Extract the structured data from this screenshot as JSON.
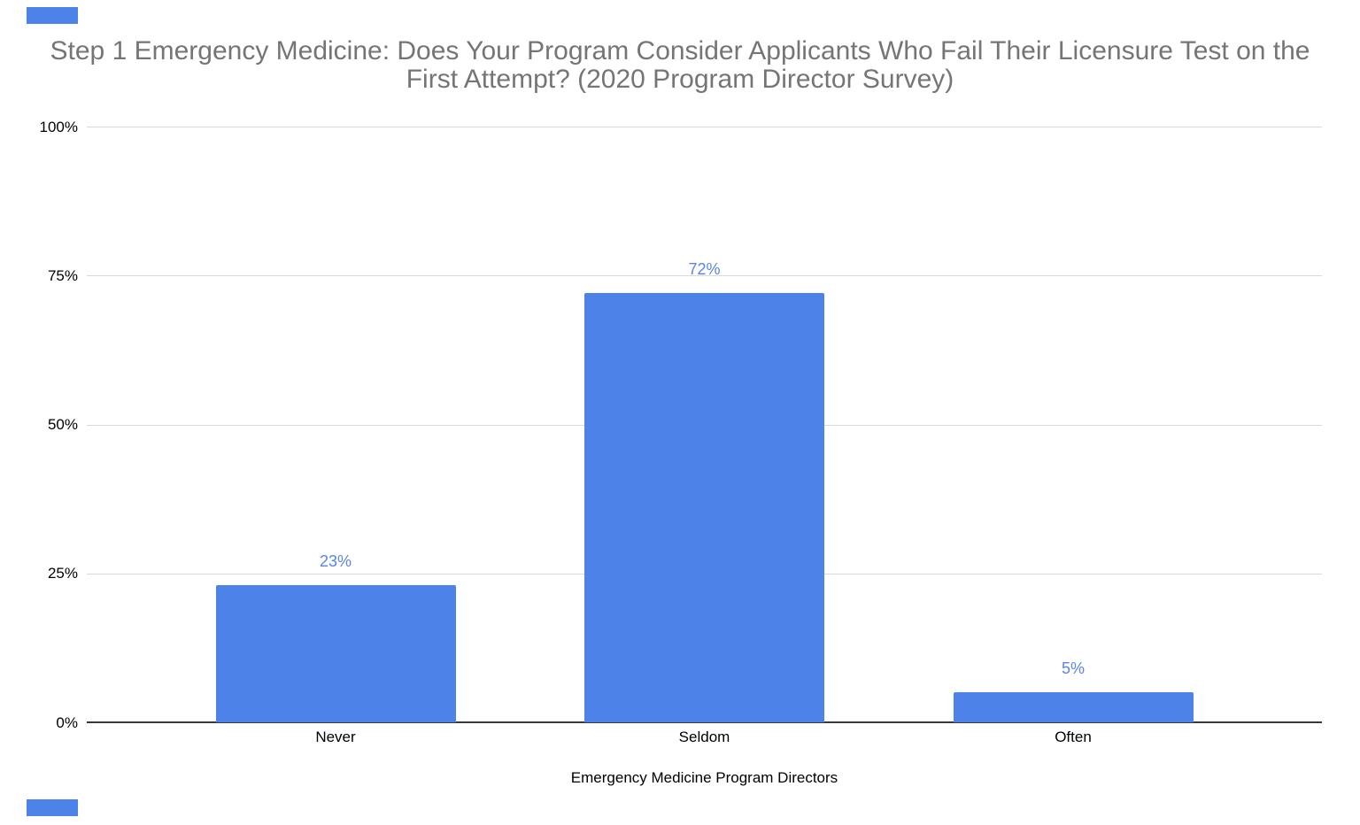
{
  "page": {
    "title": {
      "full": "Step 1 Emergency Medicine: Does Your Program Consider Applicants Who Fail Their Licensure Test on the First Attempt? (2020 Program Director Survey)",
      "lines": [
        "Step 1 Emergency Medicine: Does Your Program Consider Applicants Who Fail Their Licensure Test on the",
        "First Attempt? (2020 Program Director Survey)"
      ]
    }
  },
  "colors": {
    "background": "#ffffff",
    "bar": "#4d82e8",
    "data_label": "#5a84e8",
    "grid_line": "#d9d9d9",
    "axis_line": "#383838",
    "axis_text": "#000000",
    "title_text": "#757575",
    "corner_accent": "#4d82e8"
  },
  "chart_data": {
    "type": "bar",
    "title": "Step 1 Emergency Medicine: Does Your Program Consider Applicants Who Fail Their Licensure Test on the First Attempt? (2020 Program Director Survey)",
    "categories": [
      "Never",
      "Seldom",
      "Often"
    ],
    "values": [
      23,
      72,
      5
    ],
    "data_labels": [
      "23%",
      "72%",
      "5%"
    ],
    "xlabel": "Emergency Medicine Program Directors",
    "ylabel": "",
    "ylim": [
      0,
      100
    ],
    "yticks": [
      {
        "label": "100%",
        "value": 100
      },
      {
        "label": "75%",
        "value": 75
      },
      {
        "label": "50%",
        "value": 50
      },
      {
        "label": "25%",
        "value": 25
      },
      {
        "label": "0%",
        "value": 0
      }
    ],
    "grid": "horizontal",
    "legend": "none"
  }
}
